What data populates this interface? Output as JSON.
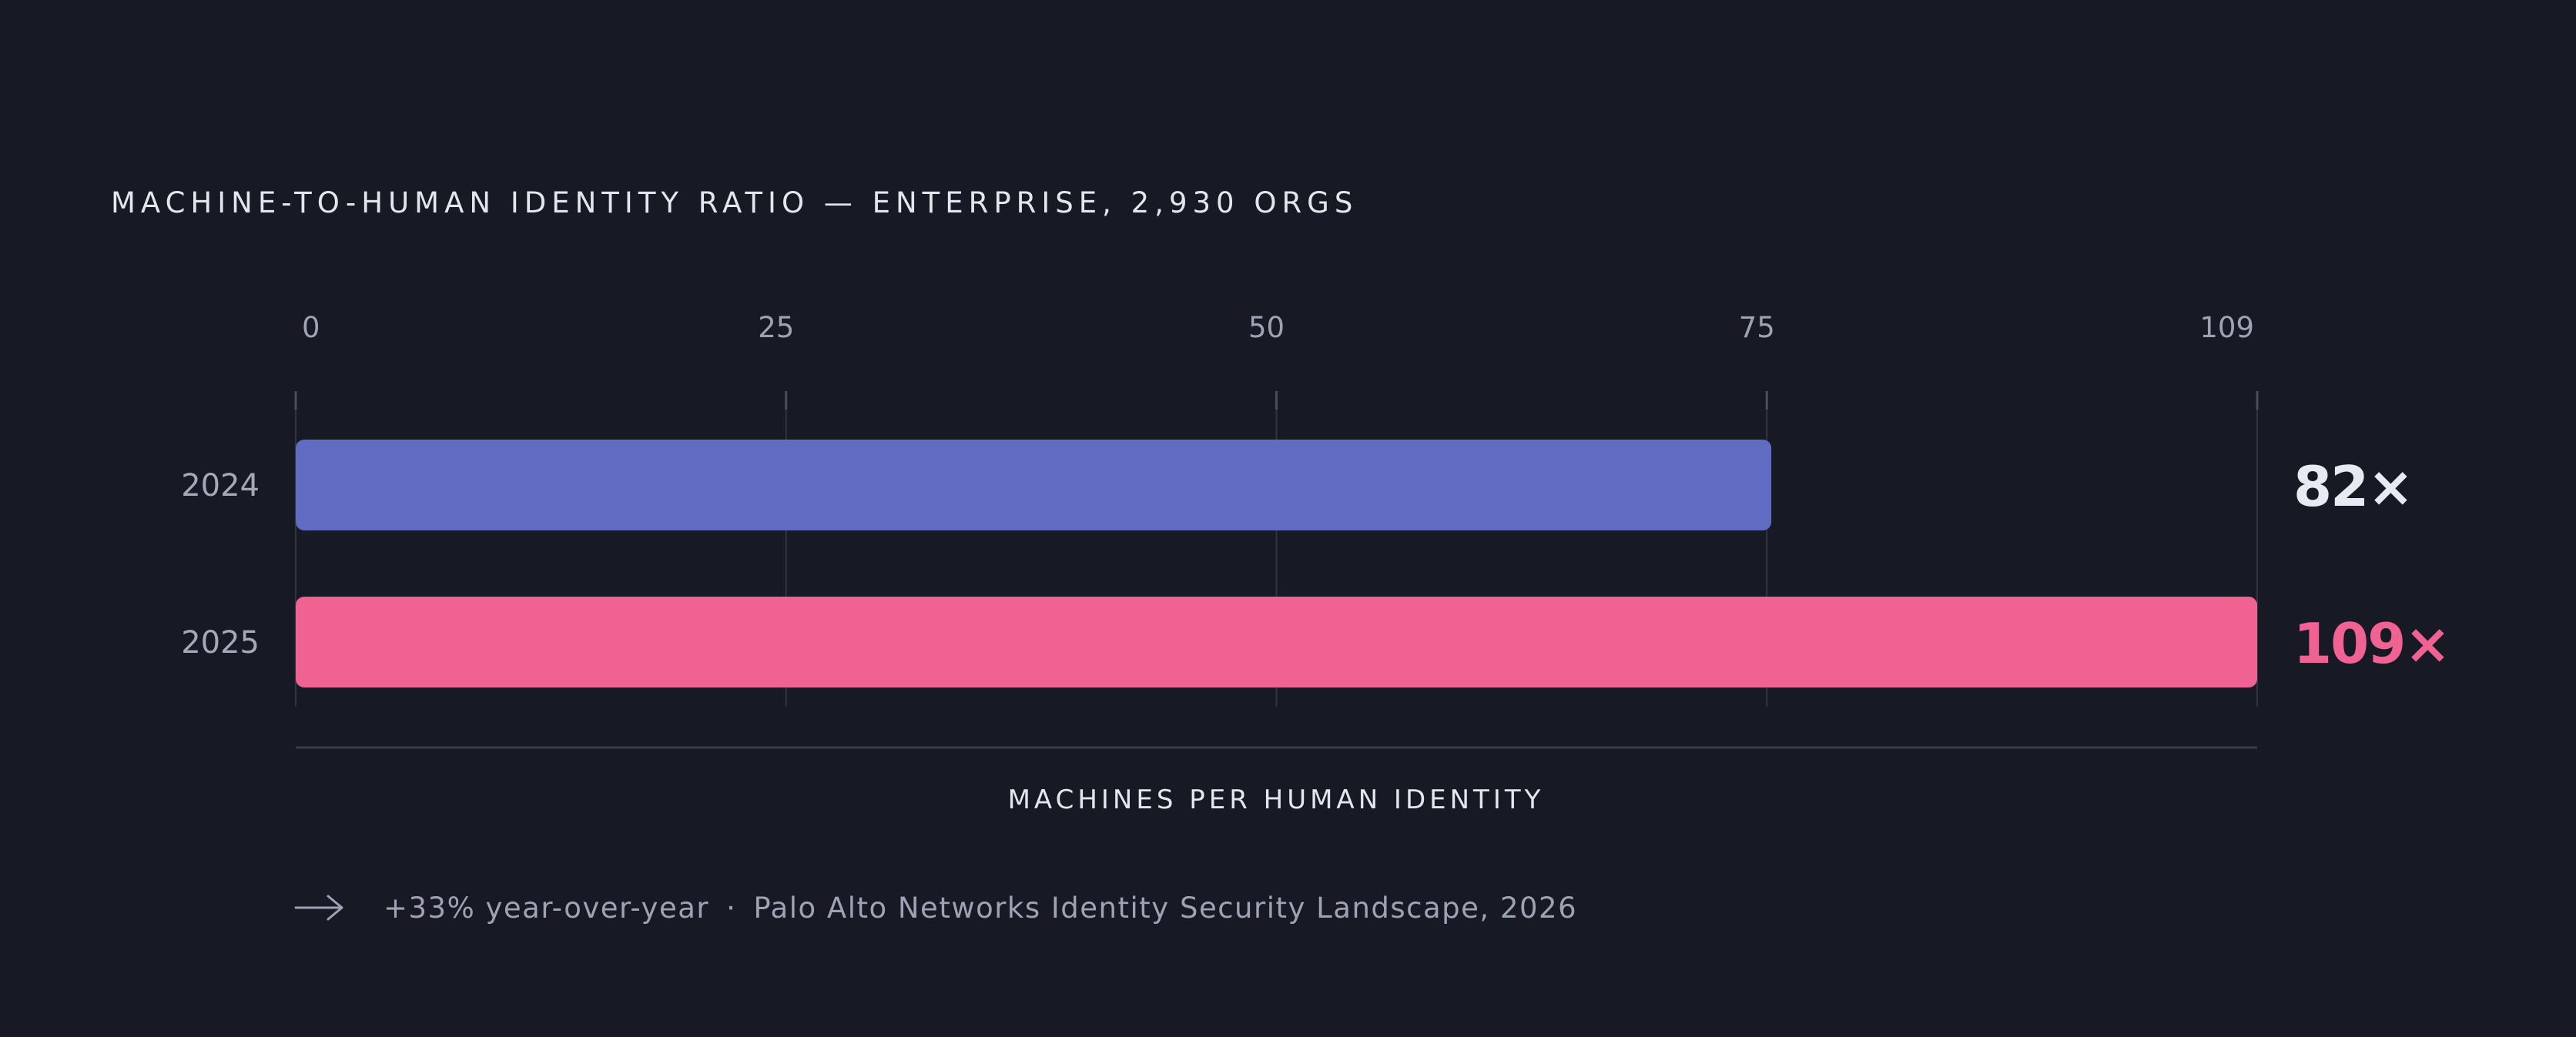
{
  "chart_data": {
    "type": "bar",
    "orientation": "horizontal",
    "title": "MACHINE-TO-HUMAN IDENTITY RATIO — ENTERPRISE, 2,930 ORGS",
    "xlabel": "MACHINES PER HUMAN IDENTITY",
    "ylabel": "",
    "xlim": [
      0,
      109
    ],
    "ticks": [
      0,
      25,
      50,
      75,
      109
    ],
    "categories": [
      "2024",
      "2025"
    ],
    "values": [
      82,
      109
    ],
    "value_labels": [
      "82×",
      "109×"
    ],
    "grid": true
  },
  "colors": {
    "background": "#171a24",
    "bar_2024": "#5f6cc2",
    "bar_2025": "#f06292",
    "value_2024": "#e8eaf2",
    "value_2025": "#f06292"
  },
  "footnote": {
    "arrow_icon": "arrow-right-icon",
    "change": "+33% year-over-year",
    "separator": "·",
    "source": "Palo Alto Networks Identity Security Landscape, 2026"
  }
}
